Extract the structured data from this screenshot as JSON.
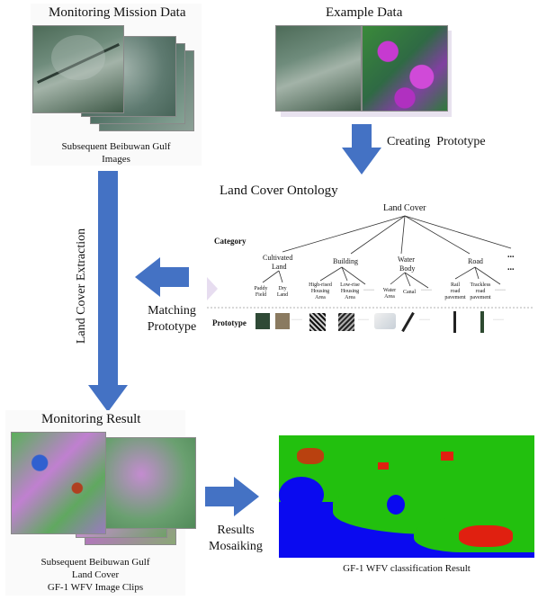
{
  "monitoring_mission": {
    "title": "Monitoring Mission Data",
    "caption_line1": "Subsequent Beibuwan Gulf",
    "caption_line2": "Images"
  },
  "example": {
    "title": "Example Data"
  },
  "arrows": {
    "creating_prototype": "Creating  Prototype",
    "land_cover_extraction": "Land Cover Extraction",
    "matching_line1": "Matching",
    "matching_line2": "Prototype",
    "results_line1": "Results",
    "results_line2": "Mosaiking"
  },
  "ontology": {
    "title": "Land Cover Ontology",
    "root": "Land Cover",
    "category_label": "Category",
    "prototype_label": "Prototype",
    "ellipsis": "...",
    "dots": "······",
    "categories": [
      {
        "l1": "Cultivated",
        "l2": "Land"
      },
      {
        "l1": "Building",
        "l2": ""
      },
      {
        "l1": "Water",
        "l2": "Body"
      },
      {
        "l1": "Road",
        "l2": ""
      }
    ],
    "leaves": {
      "paddy": [
        "Paddy",
        "Field"
      ],
      "dry": [
        "Dry",
        "Land"
      ],
      "high": [
        "High-rised",
        "Housing",
        "Area"
      ],
      "low": [
        "Low-rise",
        "Housing",
        "Area"
      ],
      "water": [
        "Water",
        "Area"
      ],
      "canal": [
        "Canal"
      ],
      "rail": [
        "Rail",
        "road",
        "pavement"
      ],
      "track": [
        "Trackless",
        "road",
        "pavement"
      ]
    }
  },
  "monitoring_result": {
    "title": "Monitoring Result",
    "caption_line1": "Subsequent Beibuwan Gulf",
    "caption_line2": "Land Cover",
    "caption_line3": "GF-1 WFV Image Clips"
  },
  "classification": {
    "caption": "GF-1 WFV classification Result"
  },
  "colors": {
    "arrow": "#4472c4",
    "sea": "#0a0af0",
    "land": "#22c00e",
    "urban": "#e02010"
  }
}
